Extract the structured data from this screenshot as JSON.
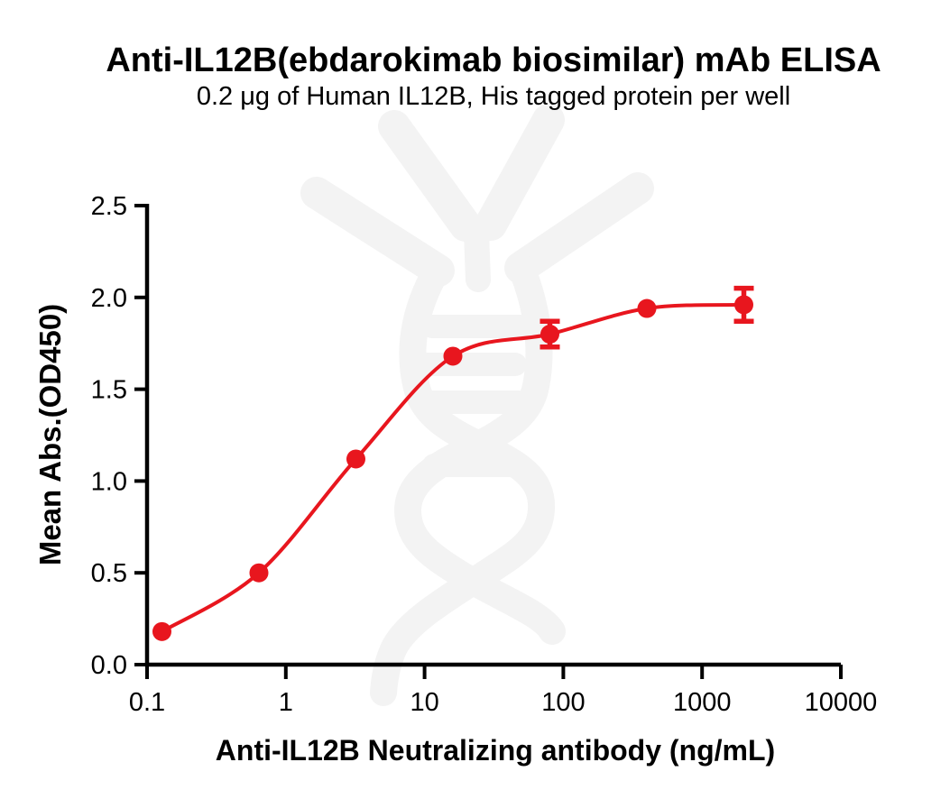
{
  "page": {
    "background": "#ffffff"
  },
  "header": {
    "title": "Anti-IL12B(ebdarokimab biosimilar) mAb ELISA",
    "subtitle": "0.2 μg of Human IL12B, His tagged protein per well"
  },
  "watermark": {
    "icon": "antibody-dna-helix-logo",
    "color": "#f3f3f3"
  },
  "chart_data": {
    "type": "scatter",
    "title": "Anti-IL12B(ebdarokimab biosimilar) mAb ELISA",
    "subtitle": "0.2 μg of Human IL12B, His tagged protein per well",
    "xlabel": "Anti-IL12B Neutralizing antibody (ng/mL)",
    "ylabel": "Mean Abs.(OD450)",
    "x_scale": "log10",
    "xlim": [
      0.1,
      10000
    ],
    "ylim": [
      0.0,
      2.5
    ],
    "x_ticks": [
      0.1,
      1,
      10,
      100,
      1000,
      10000
    ],
    "x_tick_labels": [
      "0.1",
      "1",
      "10",
      "100",
      "1000",
      "10000"
    ],
    "y_ticks": [
      0.0,
      0.5,
      1.0,
      1.5,
      2.0,
      2.5
    ],
    "y_tick_labels": [
      "0.0",
      "0.5",
      "1.0",
      "1.5",
      "2.0",
      "2.5"
    ],
    "grid": false,
    "legend": false,
    "axis_color": "#000000",
    "series": [
      {
        "name": "Anti-IL12B neutralizing antibody",
        "marker": "circle",
        "color": "#e8161e",
        "fit": "sigmoidal dose-response curve through points",
        "points": [
          {
            "x": 0.128,
            "y": 0.18,
            "sd": 0.0
          },
          {
            "x": 0.64,
            "y": 0.5,
            "sd": 0.0
          },
          {
            "x": 3.2,
            "y": 1.12,
            "sd": 0.0
          },
          {
            "x": 16,
            "y": 1.68,
            "sd": 0.0
          },
          {
            "x": 80,
            "y": 1.8,
            "sd": 0.07
          },
          {
            "x": 400,
            "y": 1.94,
            "sd": 0.0
          },
          {
            "x": 2000,
            "y": 1.96,
            "sd": 0.09
          }
        ]
      }
    ]
  }
}
